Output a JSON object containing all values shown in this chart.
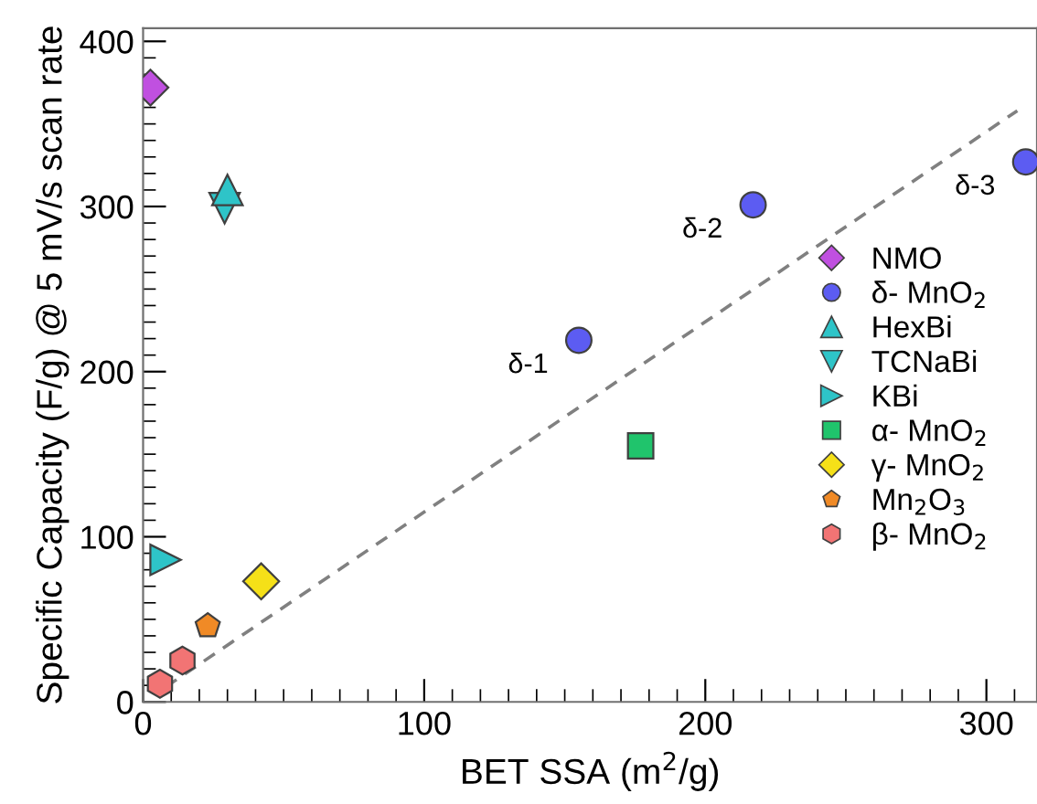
{
  "chart_data": {
    "type": "scatter",
    "xlabel": "BET SSA (m$^{2}$/g)",
    "ylabel": "Specific Capacity (F/g) @ 5 mV/s scan rate",
    "xlim": [
      0,
      318
    ],
    "ylim": [
      0,
      408
    ],
    "xticks": [
      0,
      100,
      200,
      300
    ],
    "yticks": [
      0,
      100,
      200,
      300,
      400
    ],
    "grid": false,
    "legend": "right",
    "series": [
      {
        "name": "NMO",
        "color": "#c050e0",
        "marker": "diamond",
        "x": [
          2.6
        ],
        "values": [
          372
        ]
      },
      {
        "name": "δ- MnO$_{2}$",
        "color": "#5c5cf2",
        "marker": "circle",
        "x": [
          155,
          217,
          314
        ],
        "values": [
          219,
          301,
          327
        ]
      },
      {
        "name": "HexBi",
        "color": "#2ec4c8",
        "marker": "triangle",
        "x": [
          30
        ],
        "values": [
          310
        ]
      },
      {
        "name": "TCNaBi",
        "color": "#2ec4c8",
        "marker": "triangle_down",
        "x": [
          29
        ],
        "values": [
          299
        ]
      },
      {
        "name": "KBi",
        "color": "#2ec4c8",
        "marker": "triangle_right",
        "x": [
          8
        ],
        "values": [
          86
        ]
      },
      {
        "name": "α- MnO$_{2}$",
        "color": "#20c46c",
        "marker": "square",
        "x": [
          177
        ],
        "values": [
          155
        ]
      },
      {
        "name": "γ- MnO$_{2}$",
        "color": "#f5e018",
        "marker": "diamond",
        "x": [
          42
        ],
        "values": [
          73
        ]
      },
      {
        "name": "Mn$_{2}$O$_{3}$",
        "color": "#f08a26",
        "x": [
          23
        ],
        "values": [
          46
        ]
      },
      {
        "name": "β- MnO$_{2}$",
        "color": "#f27474",
        "x": [
          6,
          14
        ],
        "values": [
          11,
          25
        ]
      },
      {
        "type": "line",
        "color": "#808080",
        "line_style": "dashed",
        "marker": "none",
        "x": [
          8,
          311
        ],
        "values": [
          9,
          358
        ]
      }
    ],
    "annotations": [
      {
        "text": "δ-1",
        "x": 155,
        "y": 219
      },
      {
        "text": "δ-2",
        "x": 217,
        "y": 301
      },
      {
        "text": "δ-3",
        "x": 314,
        "y": 327
      }
    ]
  }
}
